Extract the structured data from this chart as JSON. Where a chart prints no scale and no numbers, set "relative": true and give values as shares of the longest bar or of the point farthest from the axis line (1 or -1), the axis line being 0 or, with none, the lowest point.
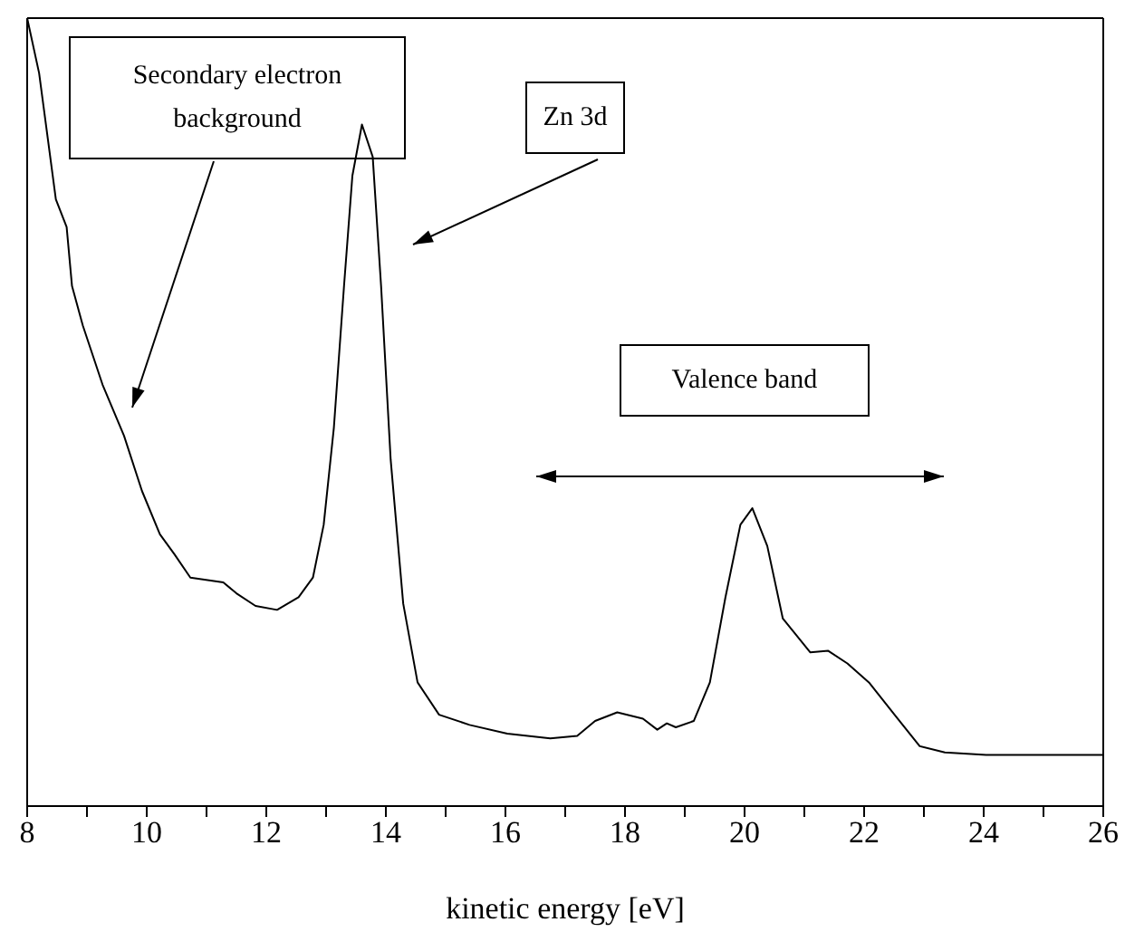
{
  "chart_data": {
    "type": "line",
    "relative": true,
    "xlabel": "kinetic energy [eV]",
    "xlim": [
      8,
      26
    ],
    "xticks": [
      8,
      {
        "value": 9,
        "label": null
      },
      10,
      {
        "value": 11,
        "label": null
      },
      12,
      {
        "value": 13,
        "label": null
      },
      14,
      {
        "value": 15,
        "label": null
      },
      16,
      {
        "value": 17,
        "label": null
      },
      18,
      {
        "value": 19,
        "label": null
      },
      20,
      {
        "value": 21,
        "label": null
      },
      22,
      {
        "value": 23,
        "label": null
      },
      24,
      {
        "value": 25,
        "label": null
      },
      26
    ],
    "annotations": [
      "Secondary electron background",
      "Zn 3d",
      "Valence band"
    ],
    "marker": "none",
    "line_style": "solid",
    "grid": false,
    "legend": false,
    "series": [
      {
        "color": "#000000",
        "x": [
          8,
          8.2,
          8.48,
          8.66,
          8.75,
          8.93,
          9.26,
          9.62,
          9.92,
          10.22,
          10.46,
          10.73,
          11.28,
          11.5,
          11.82,
          12.18,
          12.54,
          12.78,
          12.96,
          13.13,
          13.3,
          13.44,
          13.6,
          13.78,
          13.92,
          14.08,
          14.29,
          14.53,
          14.89,
          15.4,
          16.03,
          16.75,
          17.2,
          17.5,
          17.87,
          18.3,
          18.54,
          18.7,
          18.85,
          19.15,
          19.42,
          19.68,
          19.93,
          20.13,
          20.38,
          20.64,
          21.1,
          21.4,
          21.72,
          22.08,
          22.53,
          22.93,
          23.35,
          24.04,
          25.84,
          26
        ],
        "values": [
          1.0,
          0.93,
          0.77,
          0.735,
          0.66,
          0.61,
          0.535,
          0.47,
          0.4,
          0.345,
          0.32,
          0.29,
          0.284,
          0.27,
          0.254,
          0.249,
          0.265,
          0.29,
          0.357,
          0.48,
          0.66,
          0.8,
          0.865,
          0.824,
          0.66,
          0.44,
          0.257,
          0.157,
          0.116,
          0.103,
          0.092,
          0.086,
          0.089,
          0.108,
          0.119,
          0.111,
          0.097,
          0.105,
          0.1,
          0.108,
          0.157,
          0.265,
          0.357,
          0.378,
          0.33,
          0.238,
          0.195,
          0.197,
          0.181,
          0.157,
          0.114,
          0.076,
          0.068,
          0.065,
          0.065,
          0.065
        ]
      }
    ]
  }
}
